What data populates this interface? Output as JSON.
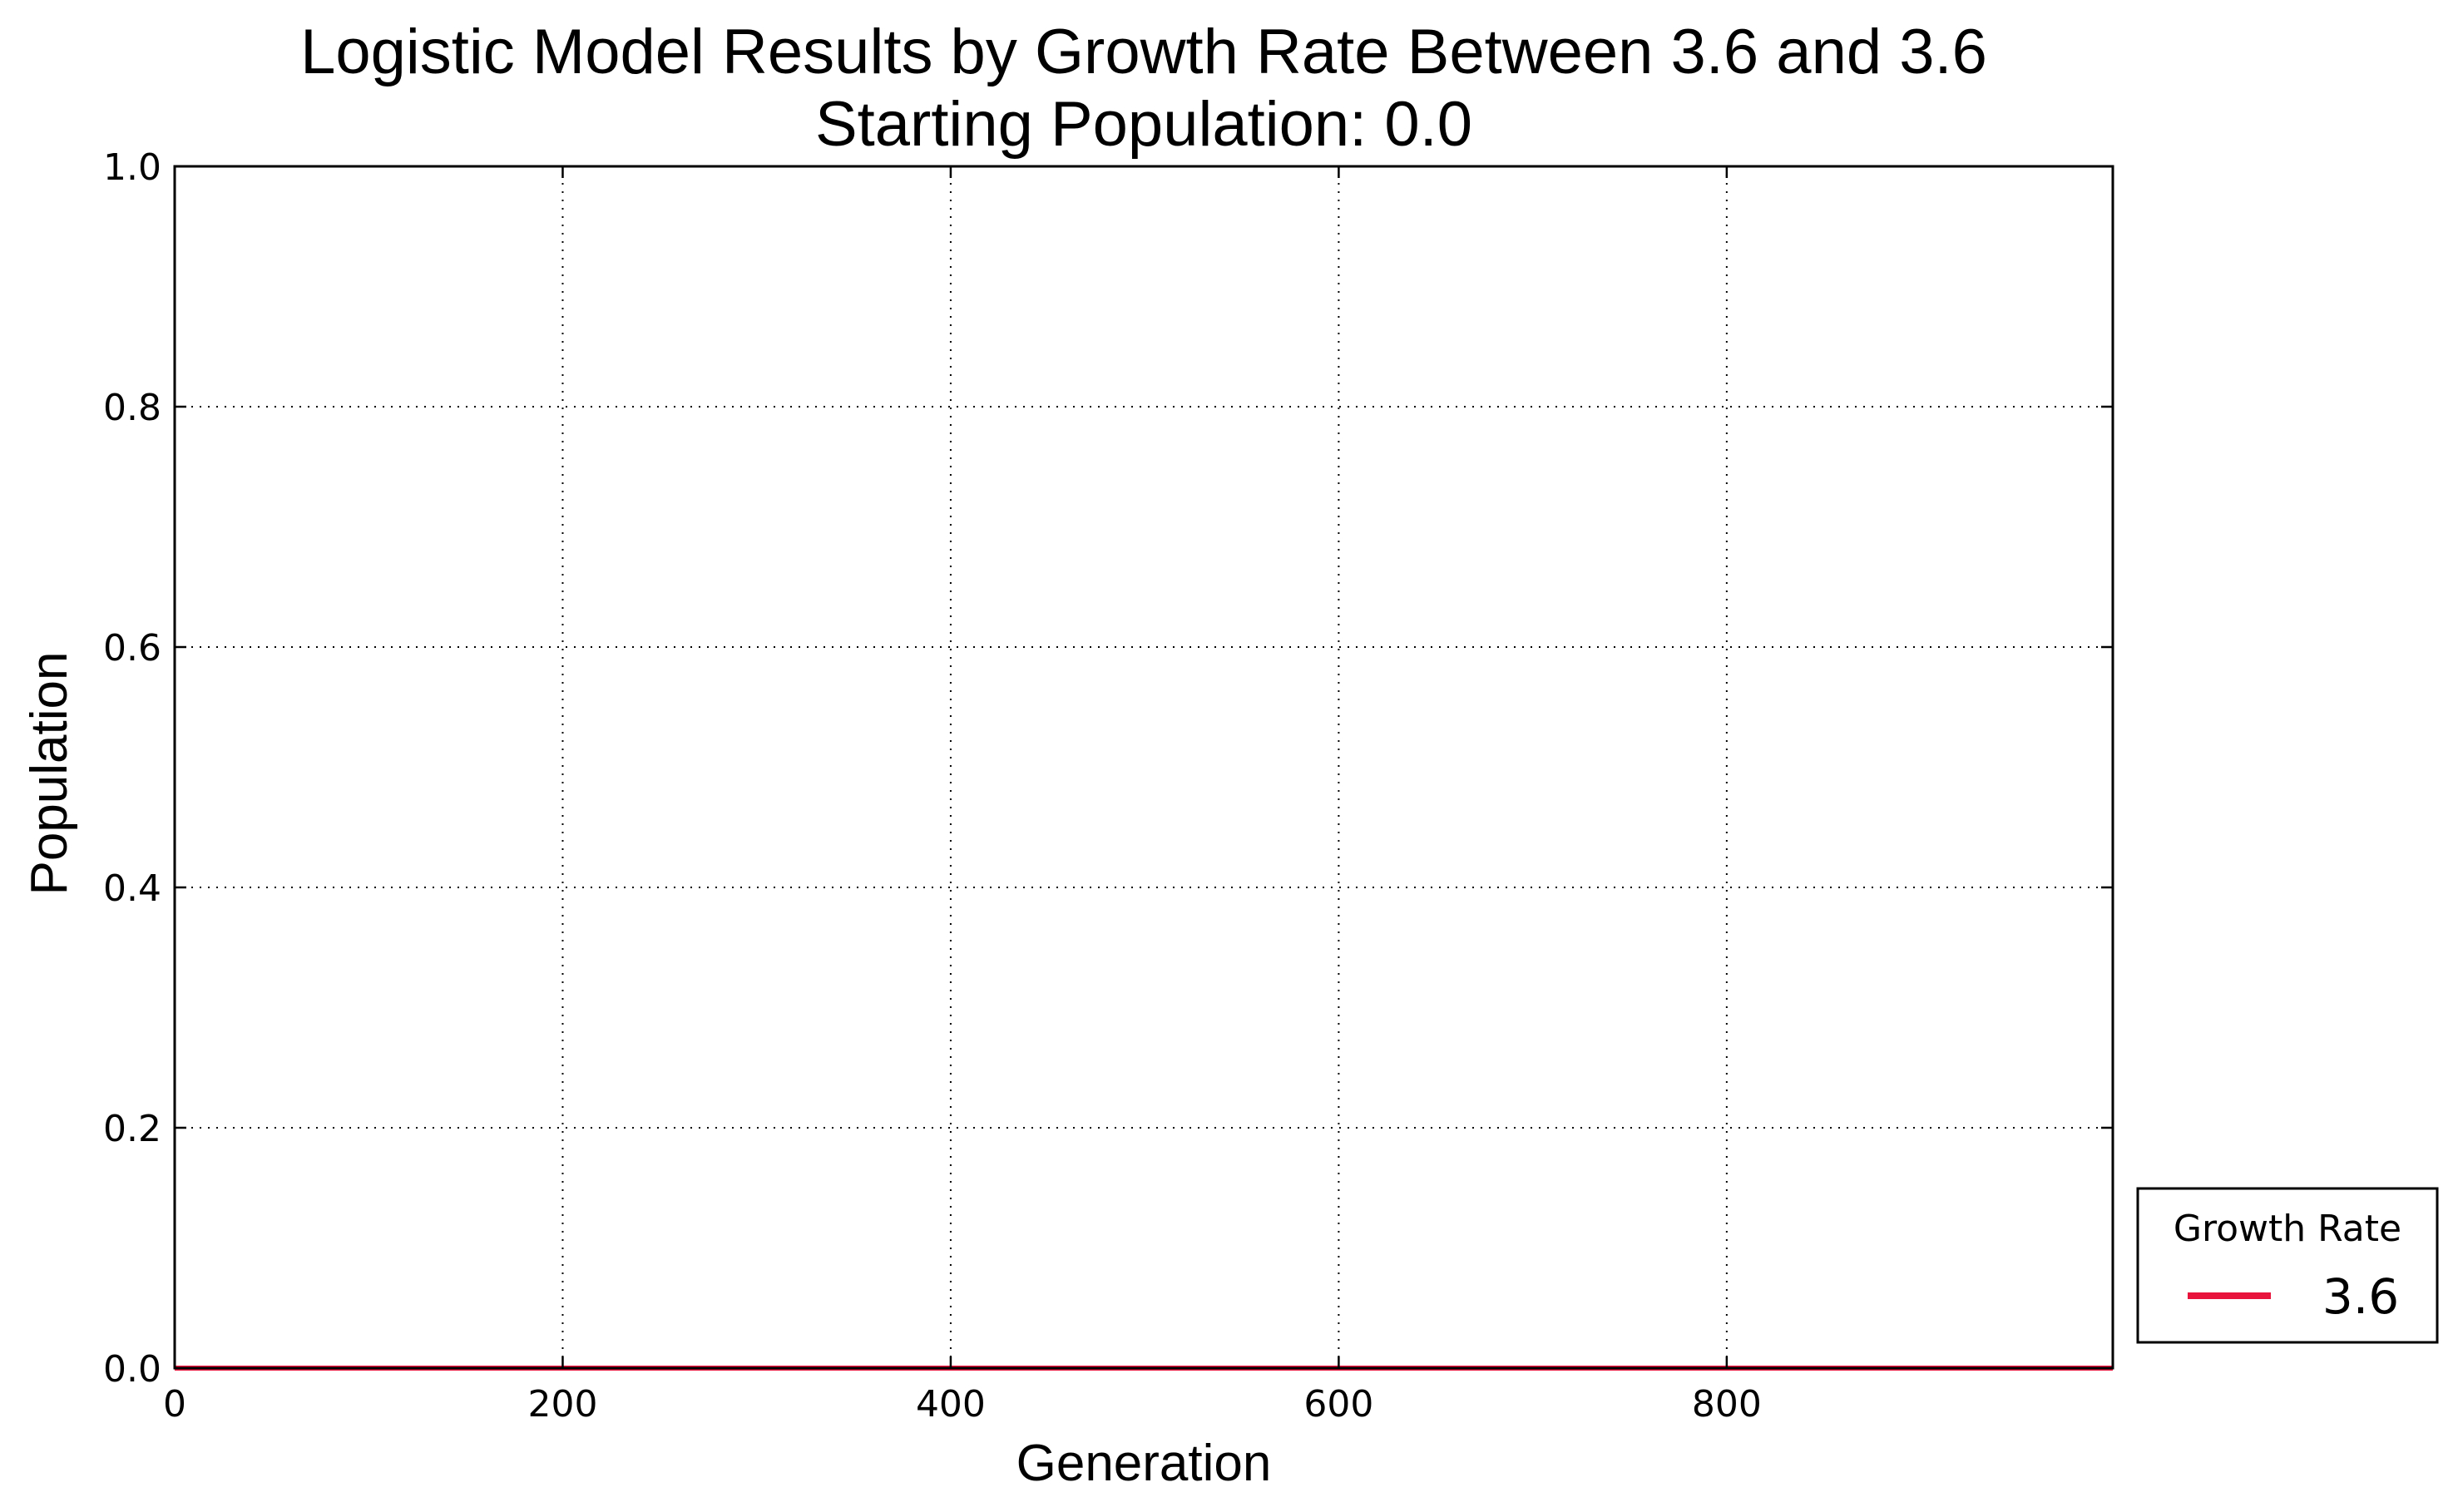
{
  "chart_data": {
    "type": "line",
    "title": "Logistic Model Results by Growth Rate Between 3.6 and 3.6",
    "subtitle": "Starting Population: 0.0",
    "xlabel": "Generation",
    "ylabel": "Population",
    "xlim": [
      0,
      999
    ],
    "ylim": [
      0.0,
      1.0
    ],
    "xticks": [
      0,
      200,
      400,
      600,
      800
    ],
    "xtick_labels": [
      "0",
      "200",
      "400",
      "600",
      "800"
    ],
    "yticks": [
      0.0,
      0.2,
      0.4,
      0.6,
      0.8,
      1.0
    ],
    "ytick_labels": [
      "0.0",
      "0.2",
      "0.4",
      "0.6",
      "0.8",
      "1.0"
    ],
    "grid": true,
    "grid_style": "dotted",
    "legend": {
      "title": "Growth Rate",
      "placement": "outside-bottom-right"
    },
    "series": [
      {
        "name": "3.6",
        "color": "#e8143c",
        "x": [
          0,
          999
        ],
        "y": [
          0.0,
          0.0
        ]
      }
    ]
  }
}
